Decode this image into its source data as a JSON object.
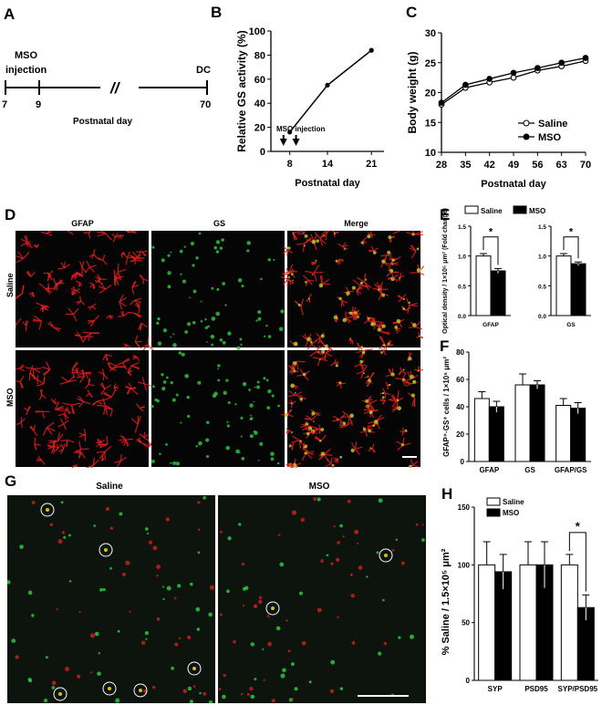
{
  "panels": {
    "A": "A",
    "B": "B",
    "C": "C",
    "D": "D",
    "E": "E",
    "F": "F",
    "G": "G",
    "H": "H"
  },
  "timeline": {
    "event_label": "MSO\ninjection",
    "end_label": "DC",
    "ticks": [
      "7",
      "9",
      "70"
    ],
    "break_mark": "//",
    "axis_label": "Postnatal day"
  },
  "micrographs_D": {
    "columns": [
      "GFAP",
      "GS",
      "Merge"
    ],
    "rows": [
      "Saline",
      "MSO"
    ]
  },
  "micrographs_G": {
    "columns": [
      "Saline",
      "MSO"
    ]
  },
  "chart_data": [
    {
      "id": "B",
      "type": "line",
      "xlabel": "Postnatal day",
      "ylabel": "Relative GS activity (%)",
      "x": [
        8,
        14,
        21
      ],
      "values": [
        16,
        55,
        84
      ],
      "errors": [
        1,
        1,
        2
      ],
      "xticks": [
        "8",
        "14",
        "21"
      ],
      "ylim": [
        0,
        100
      ],
      "yticks": [
        "0",
        "20",
        "40",
        "60",
        "80",
        "100"
      ],
      "annotation": "MSO injection",
      "arrows_at_day": [
        7,
        9
      ]
    },
    {
      "id": "C",
      "type": "line",
      "xlabel": "Postnatal day",
      "ylabel": "Body weight (g)",
      "x": [
        28,
        35,
        42,
        49,
        56,
        63,
        70
      ],
      "ylim": [
        10,
        30
      ],
      "yticks": [
        "10",
        "15",
        "20",
        "25",
        "30"
      ],
      "legend_position": "bottom-right",
      "series": [
        {
          "name": "Saline",
          "values": [
            18.0,
            20.8,
            21.7,
            22.5,
            23.7,
            24.4,
            25.3
          ],
          "marker": "open-circle"
        },
        {
          "name": "MSO",
          "values": [
            18.3,
            21.3,
            22.3,
            23.3,
            24.1,
            25.0,
            25.8
          ],
          "marker": "filled-circle"
        }
      ]
    },
    {
      "id": "E1",
      "type": "bar",
      "categories": [
        "GFAP"
      ],
      "ylabel": "Optical density / 1×10⁵ μm² (Fold change)",
      "ylim": [
        0,
        1.5
      ],
      "yticks": [
        "0.0",
        "0.5",
        "1.0",
        "1.5"
      ],
      "series": [
        {
          "name": "Saline",
          "values": [
            1.0
          ],
          "errors": [
            0.04
          ]
        },
        {
          "name": "MSO",
          "values": [
            0.75
          ],
          "errors": [
            0.04
          ]
        }
      ],
      "significance": "*"
    },
    {
      "id": "E2",
      "type": "bar",
      "categories": [
        "GS"
      ],
      "ylim": [
        0,
        1.5
      ],
      "yticks": [
        "0.0",
        "0.5",
        "1.0",
        "1.5"
      ],
      "series": [
        {
          "name": "Saline",
          "values": [
            1.0
          ],
          "errors": [
            0.04
          ]
        },
        {
          "name": "MSO",
          "values": [
            0.87
          ],
          "errors": [
            0.03
          ]
        }
      ],
      "significance": "*",
      "legend": [
        "Saline",
        "MSO"
      ]
    },
    {
      "id": "F",
      "type": "bar",
      "categories": [
        "GFAP",
        "GS",
        "GFAP/GS"
      ],
      "ylabel": "GFAP⁺·GS⁺ cells / 1×10⁵ μm²",
      "ylim": [
        0,
        80
      ],
      "yticks": [
        "0",
        "20",
        "40",
        "60",
        "80"
      ],
      "series": [
        {
          "name": "Saline",
          "values": [
            46,
            56,
            41
          ],
          "errors": [
            5,
            8,
            5
          ]
        },
        {
          "name": "MSO",
          "values": [
            40,
            56,
            39
          ],
          "errors": [
            4,
            3,
            4
          ]
        }
      ]
    },
    {
      "id": "H",
      "type": "bar",
      "categories": [
        "SYP",
        "PSD95",
        "SYP/PSD95"
      ],
      "ylabel": "% Saline / 1.5×10⁵ μm²",
      "ylim": [
        0,
        150
      ],
      "yticks": [
        "0",
        "50",
        "100",
        "150"
      ],
      "legend": [
        "Saline",
        "MSO"
      ],
      "series": [
        {
          "name": "Saline",
          "values": [
            100,
            100,
            100
          ],
          "errors": [
            20,
            20,
            9
          ]
        },
        {
          "name": "MSO",
          "values": [
            94,
            100,
            63
          ],
          "errors": [
            15,
            20,
            11
          ]
        }
      ],
      "significance": "*"
    }
  ],
  "colors": {
    "gfap_red": "#e02020",
    "gs_green": "#30c040",
    "bar_open": "#ffffff",
    "bar_filled": "#000000"
  }
}
